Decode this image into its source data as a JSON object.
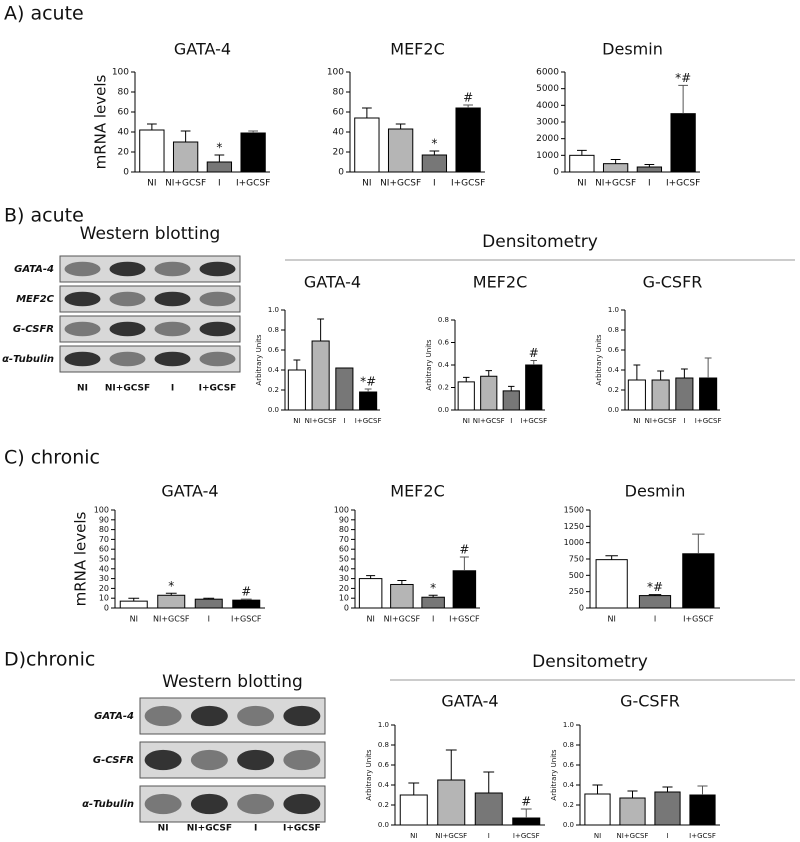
{
  "panels": [
    "A) acute",
    "B) acute",
    "C) chronic",
    "D)chronic"
  ],
  "densitometry": [
    "Densitometry",
    "Densitometry"
  ],
  "blots": [
    {
      "title": "Western blotting",
      "rows": [
        "GATA-4",
        "MEF2C",
        "G-CSFR",
        "α-Tubulin"
      ],
      "lanes": [
        "NI",
        "NI+GCSF",
        "I",
        "I+GCSF"
      ]
    },
    {
      "title": "Western blotting",
      "rows": [
        "GATA-4",
        "G-CSFR",
        "α-Tubulin"
      ],
      "lanes": [
        "NI",
        "NI+GCSF",
        "I",
        "I+GCSF"
      ]
    }
  ],
  "chart_data": [
    {
      "type": "bar",
      "title": "GATA-4",
      "ylabel": "mRNA levels",
      "categories": [
        "NI",
        "NI+GCSF",
        "I",
        "I+GCSF"
      ],
      "values": [
        42,
        30,
        10,
        39
      ],
      "errors": [
        6,
        11,
        7,
        2
      ],
      "annotations": [
        null,
        null,
        "*",
        null
      ],
      "colors": [
        "#ffffff",
        "#b5b5b5",
        "#777777",
        "#000000"
      ],
      "ylim": [
        0,
        100
      ],
      "yticks": [
        0,
        20,
        40,
        60,
        80,
        100
      ]
    },
    {
      "type": "bar",
      "title": "MEF2C",
      "categories": [
        "NI",
        "NI+GCSF",
        "I",
        "I+GCSF"
      ],
      "values": [
        54,
        43,
        17,
        64
      ],
      "errors": [
        10,
        5,
        4,
        3
      ],
      "annotations": [
        null,
        null,
        "*",
        "#"
      ],
      "colors": [
        "#ffffff",
        "#b5b5b5",
        "#777777",
        "#000000"
      ],
      "ylim": [
        0,
        100
      ],
      "yticks": [
        0,
        20,
        40,
        60,
        80,
        100
      ]
    },
    {
      "type": "bar",
      "title": "Desmin",
      "categories": [
        "NI",
        "NI+GCSF",
        "I",
        "I+GCSF"
      ],
      "values": [
        1000,
        500,
        300,
        3500
      ],
      "errors": [
        300,
        250,
        150,
        1700
      ],
      "annotations": [
        null,
        null,
        null,
        "*#"
      ],
      "colors": [
        "#ffffff",
        "#b5b5b5",
        "#777777",
        "#000000"
      ],
      "ylim": [
        0,
        6000
      ],
      "yticks": [
        0,
        1000,
        2000,
        3000,
        4000,
        5000,
        6000
      ]
    },
    {
      "type": "bar",
      "title": "GATA-4",
      "ylabel": "Arbitrary Units",
      "categories": [
        "NI",
        "NI+GCSF",
        "I",
        "I+GCSF"
      ],
      "values": [
        0.4,
        0.69,
        0.42,
        0.18
      ],
      "errors": [
        0.1,
        0.22,
        0,
        0.03
      ],
      "annotations": [
        null,
        null,
        null,
        "*#"
      ],
      "colors": [
        "#ffffff",
        "#b5b5b5",
        "#777777",
        "#000000"
      ],
      "ylim": [
        0,
        1
      ],
      "yticks": [
        {
          "value": 0,
          "label": "0.0"
        },
        0.2,
        0.4,
        0.6,
        0.8,
        {
          "value": 1,
          "label": "1.0"
        }
      ]
    },
    {
      "type": "bar",
      "title": "MEF2C",
      "ylabel": "Arbitrary Units",
      "categories": [
        "NI",
        "NI+GCSF",
        "I",
        "I+GCSF"
      ],
      "values": [
        0.25,
        0.3,
        0.17,
        0.4
      ],
      "errors": [
        0.04,
        0.05,
        0.04,
        0.04
      ],
      "annotations": [
        null,
        null,
        null,
        "#"
      ],
      "colors": [
        "#ffffff",
        "#b5b5b5",
        "#777777",
        "#000000"
      ],
      "ylim": [
        0,
        0.8
      ],
      "yticks": [
        {
          "value": 0,
          "label": "0.0"
        },
        0.2,
        0.4,
        0.6,
        0.8
      ]
    },
    {
      "type": "bar",
      "title": "G-CSFR",
      "ylabel": "Arbitrary Units",
      "categories": [
        "NI",
        "NI+GCSF",
        "I",
        "I+GCSF"
      ],
      "values": [
        0.3,
        0.3,
        0.32,
        0.32
      ],
      "errors": [
        0.15,
        0.09,
        0.09,
        0.2
      ],
      "annotations": [
        null,
        null,
        null,
        null
      ],
      "colors": [
        "#ffffff",
        "#b5b5b5",
        "#777777",
        "#000000"
      ],
      "ylim": [
        0,
        1
      ],
      "yticks": [
        {
          "value": 0,
          "label": "0.0"
        },
        0.2,
        0.4,
        0.6,
        0.8,
        {
          "value": 1,
          "label": "1.0"
        }
      ]
    },
    {
      "type": "bar",
      "title": "GATA-4",
      "ylabel": "mRNA levels",
      "categories": [
        "NI",
        "NI+GCSF",
        "I",
        "I+GSCF"
      ],
      "values": [
        7,
        13,
        9,
        8
      ],
      "errors": [
        3,
        2,
        1,
        1
      ],
      "annotations": [
        null,
        "*",
        null,
        "#"
      ],
      "colors": [
        "#ffffff",
        "#b5b5b5",
        "#777777",
        "#000000"
      ],
      "ylim": [
        0,
        100
      ],
      "yticks": [
        0,
        10,
        20,
        30,
        40,
        50,
        60,
        70,
        80,
        90,
        100
      ]
    },
    {
      "type": "bar",
      "title": "MEF2C",
      "categories": [
        "NI",
        "NI+GCSF",
        "I",
        "I+GSCF"
      ],
      "values": [
        30,
        24,
        11,
        38
      ],
      "errors": [
        3,
        4,
        2,
        14
      ],
      "annotations": [
        null,
        null,
        "*",
        "#"
      ],
      "colors": [
        "#ffffff",
        "#b5b5b5",
        "#777777",
        "#000000"
      ],
      "ylim": [
        0,
        100
      ],
      "yticks": [
        0,
        10,
        20,
        30,
        40,
        50,
        60,
        70,
        80,
        90,
        100
      ]
    },
    {
      "type": "bar",
      "title": "Desmin",
      "categories": [
        "NI",
        "I",
        "I+GSCF"
      ],
      "values": [
        740,
        190,
        830
      ],
      "errors": [
        60,
        15,
        300
      ],
      "annotations": [
        null,
        "*#",
        null
      ],
      "colors": [
        "#ffffff",
        "#777777",
        "#000000"
      ],
      "ylim": [
        0,
        1500
      ],
      "yticks": [
        0,
        250,
        500,
        750,
        1000,
        1250,
        1500
      ]
    },
    {
      "type": "bar",
      "title": "GATA-4",
      "ylabel": "Arbitrary Units",
      "categories": [
        "NI",
        "NI+GCSF",
        "I",
        "I+GCSF"
      ],
      "values": [
        0.3,
        0.45,
        0.32,
        0.07
      ],
      "errors": [
        0.12,
        0.3,
        0.21,
        0.09
      ],
      "annotations": [
        null,
        null,
        null,
        "#"
      ],
      "colors": [
        "#ffffff",
        "#b5b5b5",
        "#777777",
        "#000000"
      ],
      "ylim": [
        0,
        1
      ],
      "yticks": [
        {
          "value": 0,
          "label": "0.0"
        },
        0.2,
        0.4,
        0.6,
        0.8,
        {
          "value": 1,
          "label": "1.0"
        }
      ]
    },
    {
      "type": "bar",
      "title": "G-CSFR",
      "ylabel": "Arbitrary Units",
      "categories": [
        "NI",
        "NI+GCSF",
        "I",
        "I+GCSF"
      ],
      "values": [
        0.31,
        0.27,
        0.33,
        0.3
      ],
      "errors": [
        0.09,
        0.07,
        0.05,
        0.09
      ],
      "annotations": [
        null,
        null,
        null,
        null
      ],
      "colors": [
        "#ffffff",
        "#b5b5b5",
        "#777777",
        "#000000"
      ],
      "ylim": [
        0,
        1
      ],
      "yticks": [
        {
          "value": 0,
          "label": "0.0"
        },
        0.2,
        0.4,
        0.6,
        0.8,
        {
          "value": 1,
          "label": "1.0"
        }
      ]
    }
  ]
}
